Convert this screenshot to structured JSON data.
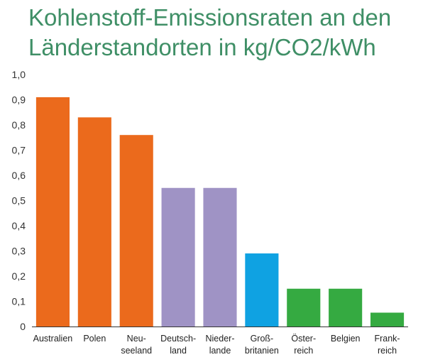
{
  "title_lines": [
    "Kohlenstoff-Emissionsraten an den",
    "Länderstandorten in kg/CO2/kWh"
  ],
  "colors": {
    "title": "#3f8f66",
    "axis": "#333333"
  },
  "chart_data": {
    "type": "bar",
    "title": "Kohlenstoff-Emissionsraten an den Länderstandorten in kg/CO2/kWh",
    "xlabel": "",
    "ylabel": "",
    "ylim": [
      0,
      1.0
    ],
    "yticks": [
      "0",
      "0,1",
      "0,2",
      "0,3",
      "0,4",
      "0,5",
      "0,6",
      "0,7",
      "0,8",
      "0,9",
      "1,0"
    ],
    "grid": false,
    "legend": "none",
    "categories": [
      [
        "Australien"
      ],
      [
        "Polen"
      ],
      [
        "Neu-",
        "seeland"
      ],
      [
        "Deutsch-",
        "land"
      ],
      [
        "Nieder-",
        "lande"
      ],
      [
        "Groß-",
        "britanien"
      ],
      [
        "Öster-",
        "reich"
      ],
      [
        "Belgien"
      ],
      [
        "Frank-",
        "reich"
      ]
    ],
    "values": [
      0.91,
      0.83,
      0.76,
      0.55,
      0.55,
      0.29,
      0.15,
      0.15,
      0.055
    ],
    "bar_colors": [
      "#eb6a1c",
      "#eb6a1c",
      "#eb6a1c",
      "#9f93c5",
      "#9f93c5",
      "#0fa2e2",
      "#35aa41",
      "#35aa41",
      "#35aa41"
    ]
  }
}
